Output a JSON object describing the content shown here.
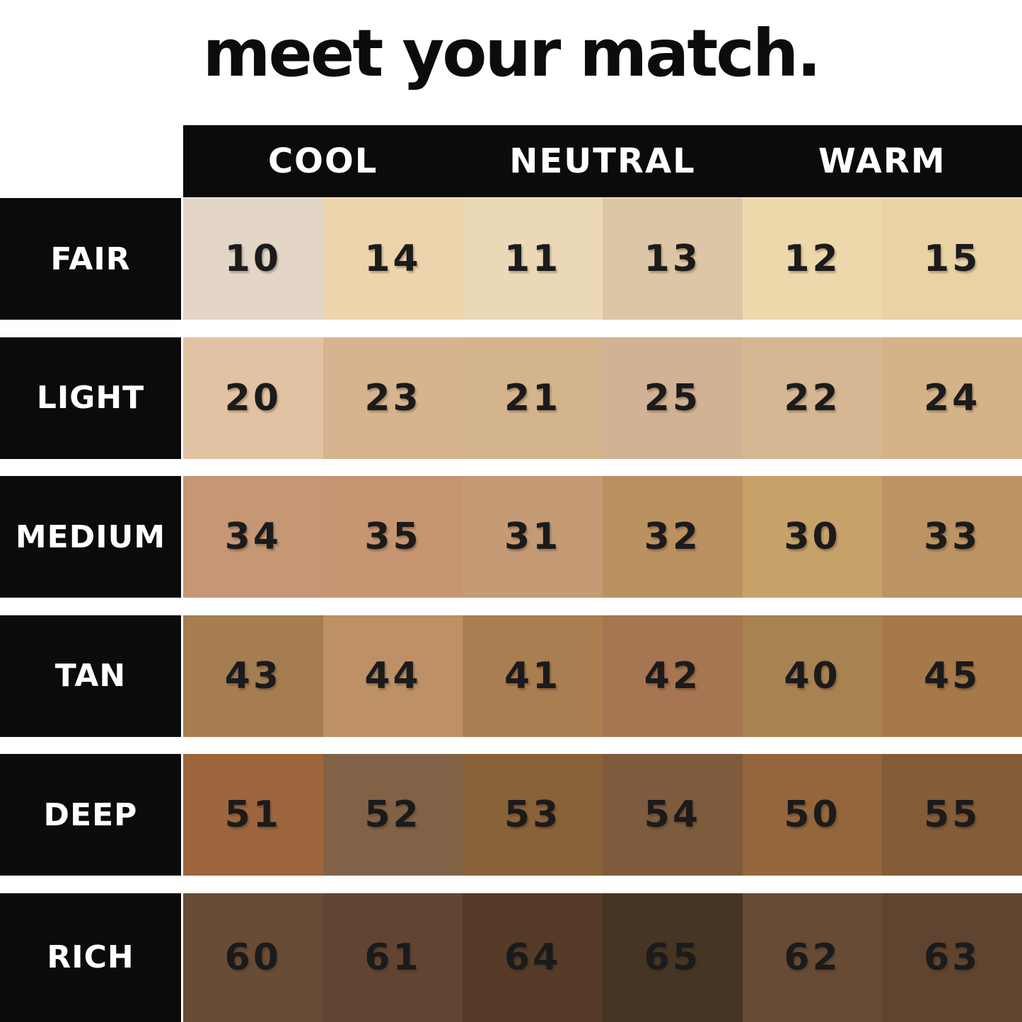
{
  "title": "meet your match.",
  "colors": {
    "page_background": "#ffffff",
    "bar_black": "#0b0b0b",
    "label_text": "#ffffff",
    "number_text": "#1b1b1b",
    "title_text": "#0c0c0c"
  },
  "chart_data": {
    "type": "table",
    "title": "meet your match.",
    "column_groups": [
      "COOL",
      "NEUTRAL",
      "WARM"
    ],
    "columns_per_group": 2,
    "row_labels": [
      "FAIR",
      "LIGHT",
      "MEDIUM",
      "TAN",
      "DEEP",
      "RICH"
    ],
    "rows": [
      {
        "label": "FAIR",
        "shades": [
          {
            "number": "10",
            "color": "#e3d6c7"
          },
          {
            "number": "14",
            "color": "#eed4ac"
          },
          {
            "number": "11",
            "color": "#ead8b6"
          },
          {
            "number": "13",
            "color": "#ddc6a5"
          },
          {
            "number": "12",
            "color": "#edd8ac"
          },
          {
            "number": "15",
            "color": "#e9d3a5"
          }
        ]
      },
      {
        "label": "LIGHT",
        "shades": [
          {
            "number": "20",
            "color": "#e1c3a4"
          },
          {
            "number": "23",
            "color": "#d6b48f"
          },
          {
            "number": "21",
            "color": "#d4b48d"
          },
          {
            "number": "25",
            "color": "#d1b294"
          },
          {
            "number": "22",
            "color": "#d6b793"
          },
          {
            "number": "24",
            "color": "#d4b389"
          }
        ]
      },
      {
        "label": "MEDIUM",
        "shades": [
          {
            "number": "34",
            "color": "#c59775"
          },
          {
            "number": "35",
            "color": "#c79572"
          },
          {
            "number": "31",
            "color": "#c49b75"
          },
          {
            "number": "32",
            "color": "#bc9161"
          },
          {
            "number": "30",
            "color": "#c7a16a"
          },
          {
            "number": "33",
            "color": "#bc9363"
          }
        ]
      },
      {
        "label": "TAN",
        "shades": [
          {
            "number": "43",
            "color": "#a67d51"
          },
          {
            "number": "44",
            "color": "#bd9066"
          },
          {
            "number": "41",
            "color": "#a97e50"
          },
          {
            "number": "42",
            "color": "#a77552"
          },
          {
            "number": "40",
            "color": "#a98252"
          },
          {
            "number": "45",
            "color": "#a7794a"
          }
        ]
      },
      {
        "label": "DEEP",
        "shades": [
          {
            "number": "51",
            "color": "#9e663d"
          },
          {
            "number": "52",
            "color": "#826246"
          },
          {
            "number": "53",
            "color": "#8a6239"
          },
          {
            "number": "54",
            "color": "#7d5b3c"
          },
          {
            "number": "50",
            "color": "#95663c"
          },
          {
            "number": "55",
            "color": "#845c38"
          }
        ]
      },
      {
        "label": "RICH",
        "shades": [
          {
            "number": "60",
            "color": "#684c35"
          },
          {
            "number": "61",
            "color": "#614532"
          },
          {
            "number": "64",
            "color": "#553b28"
          },
          {
            "number": "65",
            "color": "#463425"
          },
          {
            "number": "62",
            "color": "#684b34"
          },
          {
            "number": "63",
            "color": "#5f4430"
          }
        ]
      }
    ]
  }
}
